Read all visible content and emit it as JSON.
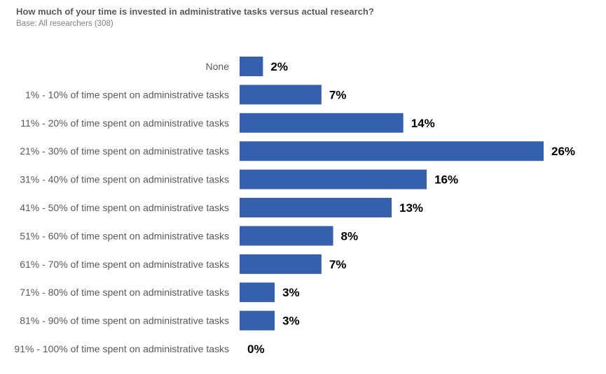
{
  "header": {
    "title": "How much of your time is invested in administrative tasks versus actual research?",
    "subtitle": "Base: All researchers (308)"
  },
  "colors": {
    "bar": "#3560ad"
  },
  "chart_data": {
    "type": "bar",
    "orientation": "horizontal",
    "title": "How much of your time is invested in administrative tasks versus actual research?",
    "subtitle": "Base: All researchers (308)",
    "xlabel": "",
    "ylabel": "",
    "categories": [
      "None",
      "1% - 10% of time spent on administrative tasks",
      "11% - 20% of time spent on administrative tasks",
      "21% - 30% of time spent on administrative tasks",
      "31% - 40% of time spent on administrative tasks",
      "41% - 50% of time spent on administrative tasks",
      "51% - 60% of time spent on administrative tasks",
      "61% - 70% of time spent on administrative tasks",
      "71% - 80% of time spent on administrative tasks",
      "81% - 90% of time spent on administrative tasks",
      "91% - 100% of time spent on administrative tasks"
    ],
    "values": [
      2,
      7,
      14,
      26,
      16,
      13,
      8,
      7,
      3,
      3,
      0
    ],
    "value_labels": [
      "2%",
      "7%",
      "14%",
      "26%",
      "16%",
      "13%",
      "8%",
      "7%",
      "3%",
      "3%",
      "0%"
    ],
    "xlim": [
      0,
      26
    ],
    "grid": false,
    "legend": "none"
  }
}
